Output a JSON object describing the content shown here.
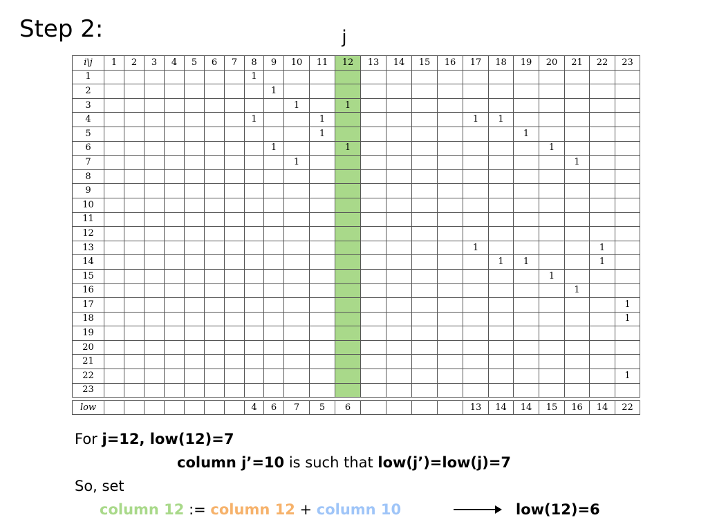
{
  "title": "Step 2:",
  "j_marker": "j",
  "highlight_column": 12,
  "corner_label": "i\\j",
  "col_headers": [
    "1",
    "2",
    "3",
    "4",
    "5",
    "6",
    "7",
    "8",
    "9",
    "10",
    "11",
    "12",
    "13",
    "14",
    "15",
    "16",
    "17",
    "18",
    "19",
    "20",
    "21",
    "22",
    "23"
  ],
  "row_headers": [
    "1",
    "2",
    "3",
    "4",
    "5",
    "6",
    "7",
    "8",
    "9",
    "10",
    "11",
    "12",
    "13",
    "14",
    "15",
    "16",
    "17",
    "18",
    "19",
    "20",
    "21",
    "22",
    "23"
  ],
  "entries": {
    "1": [
      8
    ],
    "2": [
      9
    ],
    "3": [
      10,
      12
    ],
    "4": [
      8,
      11,
      17,
      18
    ],
    "5": [
      11,
      19
    ],
    "6": [
      9,
      12,
      20
    ],
    "7": [
      10,
      21
    ],
    "13": [
      17,
      22
    ],
    "14": [
      18,
      19,
      22
    ],
    "15": [
      20
    ],
    "16": [
      21
    ],
    "17": [
      23
    ],
    "18": [
      23
    ],
    "22": [
      23
    ]
  },
  "entry_value": "1",
  "low_label": "low",
  "low_values": [
    "",
    "",
    "",
    "",
    "",
    "",
    "",
    "4",
    "6",
    "7",
    "5",
    "6",
    "",
    "",
    "",
    "",
    "13",
    "14",
    "14",
    "15",
    "16",
    "14",
    "22"
  ],
  "caption": {
    "line1_prefix": "For ",
    "line1_bold": "j=12, low(12)=7",
    "line2_bold1": "column j’=10",
    "line2_mid": " is such that ",
    "line2_bold2": "low(j’)=low(j)=7",
    "line3": "So, set",
    "line4_green": "column 12",
    "line4_op1": " := ",
    "line4_orange": "column 12",
    "line4_op2": " + ",
    "line4_blue": "column 10",
    "line4_result": "low(12)=6"
  },
  "colors": {
    "highlight": "#a9d98a",
    "orange": "#f6b26b",
    "blue": "#9fc5f8"
  }
}
